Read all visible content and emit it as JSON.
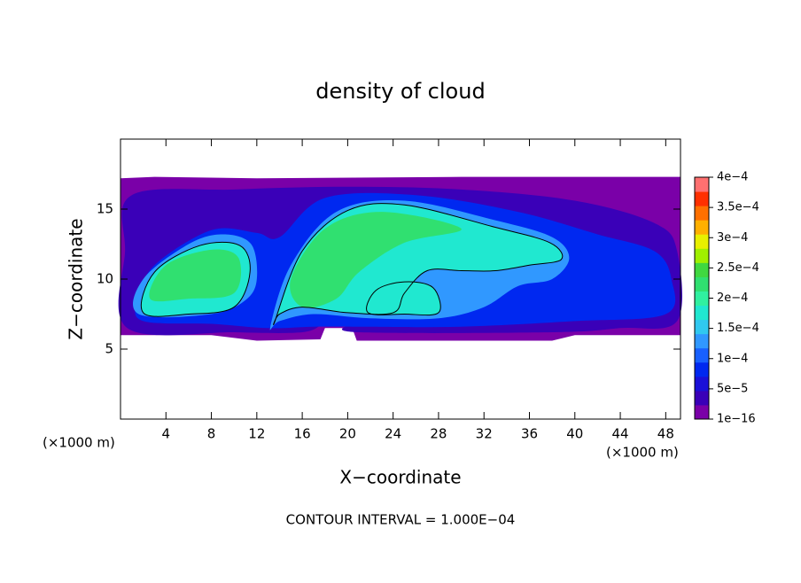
{
  "chart_data": {
    "type": "contour",
    "title": "density of cloud",
    "xlabel": "X−coordinate",
    "ylabel": "Z−coordinate",
    "unit_label": "(×1000 m)",
    "note": "CONTOUR INTERVAL = 1.000E−04",
    "xlim": [
      0,
      49.3
    ],
    "ylim": [
      0,
      20
    ],
    "xticks": [
      4,
      8,
      12,
      16,
      20,
      24,
      28,
      32,
      36,
      40,
      44,
      48
    ],
    "yticks": [
      5,
      10,
      15
    ],
    "colorbar": {
      "ticks": [
        {
          "value": 1e-16,
          "label": "1e−16"
        },
        {
          "value": 5e-05,
          "label": "5e−5"
        },
        {
          "value": 0.0001,
          "label": "1e−4"
        },
        {
          "value": 0.00015,
          "label": "1.5e−4"
        },
        {
          "value": 0.0002,
          "label": "2e−4"
        },
        {
          "value": 0.00025,
          "label": "2.5e−4"
        },
        {
          "value": 0.0003,
          "label": "3e−4"
        },
        {
          "value": 0.00035,
          "label": "3.5e−4"
        },
        {
          "value": 0.0004,
          "label": "4e−4"
        }
      ],
      "colors": [
        "#7a00a8",
        "#3a00b8",
        "#1a10d8",
        "#0028f0",
        "#1860ff",
        "#3098ff",
        "#30c8f0",
        "#20e8d0",
        "#30f0a0",
        "#30e070",
        "#40d840",
        "#a0f000",
        "#e8f000",
        "#ffb000",
        "#ff7000",
        "#ff3000",
        "#ff7070"
      ]
    }
  }
}
